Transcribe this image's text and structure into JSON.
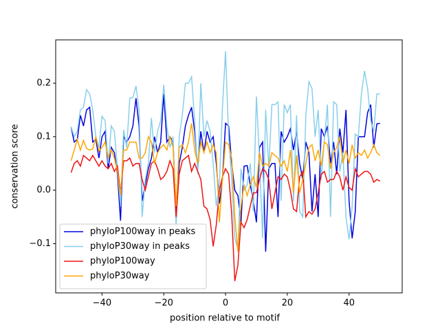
{
  "chart_data": {
    "type": "line",
    "xlabel": "position relative to motif",
    "ylabel": "conservation score",
    "x": [
      -50,
      -49,
      -48,
      -47,
      -46,
      -45,
      -44,
      -43,
      -42,
      -41,
      -40,
      -39,
      -38,
      -37,
      -36,
      -35,
      -34,
      -33,
      -32,
      -31,
      -30,
      -29,
      -28,
      -27,
      -26,
      -25,
      -24,
      -23,
      -22,
      -21,
      -20,
      -19,
      -18,
      -17,
      -16,
      -15,
      -14,
      -13,
      -12,
      -11,
      -10,
      -9,
      -8,
      -7,
      -6,
      -5,
      -4,
      -3,
      -2,
      -1,
      0,
      1,
      2,
      3,
      4,
      5,
      6,
      7,
      8,
      9,
      10,
      11,
      12,
      13,
      14,
      15,
      16,
      17,
      18,
      19,
      20,
      21,
      22,
      23,
      24,
      25,
      26,
      27,
      28,
      29,
      30,
      31,
      32,
      33,
      34,
      35,
      36,
      37,
      38,
      39,
      40,
      41,
      42,
      43,
      44,
      45,
      46,
      47,
      48,
      49,
      50
    ],
    "series": [
      {
        "name": "phyloP100way in peaks",
        "color": "#0000dd",
        "values": [
          0.118,
          0.09,
          0.095,
          0.14,
          0.12,
          0.15,
          0.155,
          0.09,
          0.095,
          0.06,
          0.1,
          0.11,
          0.04,
          0.08,
          0.07,
          0.03,
          -0.057,
          0.1,
          0.09,
          0.1,
          0.12,
          0.172,
          0.12,
          -0.02,
          0.01,
          0.04,
          0.06,
          0.1,
          0.07,
          0.09,
          0.18,
          0.09,
          0.1,
          0.09,
          -0.04,
          0.05,
          0.08,
          0.12,
          0.14,
          0.155,
          0.11,
          0.04,
          0.11,
          0.07,
          0.11,
          0.09,
          0.1,
          0.05,
          -0.025,
          0.02,
          0.125,
          0.12,
          0.05,
          0.0,
          -0.01,
          -0.06,
          0.045,
          0.046,
          0.01,
          -0.02,
          -0.06,
          0.08,
          0.09,
          -0.115,
          0.04,
          0.05,
          0.05,
          -0.05,
          0.11,
          0.09,
          0.1,
          0.115,
          0.075,
          0.11,
          0.05,
          0.02,
          0.09,
          0.07,
          -0.04,
          0.03,
          -0.05,
          0.115,
          0.1,
          0.12,
          0.05,
          0.09,
          0.03,
          0.115,
          0.07,
          0.15,
          -0.02,
          -0.09,
          -0.04,
          0.1,
          0.1,
          0.1,
          0.145,
          0.16,
          0.08,
          0.124,
          0.125
        ]
      },
      {
        "name": "phyloP30way in peaks",
        "color": "#87ceeb",
        "values": [
          0.118,
          0.1,
          0.11,
          0.15,
          0.155,
          0.188,
          0.18,
          0.15,
          0.1,
          0.08,
          0.138,
          0.13,
          0.05,
          0.12,
          0.11,
          0.04,
          -0.03,
          0.113,
          0.08,
          0.172,
          0.173,
          0.195,
          0.15,
          -0.05,
          0.02,
          0.05,
          0.135,
          0.07,
          0.11,
          0.13,
          0.197,
          0.12,
          0.08,
          0.1,
          -0.07,
          0.1,
          0.14,
          0.2,
          0.2,
          0.212,
          0.13,
          0.03,
          0.2,
          0.1,
          0.13,
          0.11,
          0.05,
          -0.03,
          0.01,
          0.155,
          0.26,
          0.1,
          0.02,
          -0.09,
          -0.11,
          0.04,
          0.0,
          0.01,
          0.05,
          -0.04,
          0.175,
          0.06,
          -0.09,
          0.15,
          0.04,
          0.16,
          0.16,
          0.165,
          -0.02,
          0.16,
          0.145,
          0.16,
          -0.02,
          0.14,
          -0.04,
          -0.05,
          0.14,
          0.203,
          0.19,
          0.1,
          0.15,
          0.02,
          0.095,
          0.16,
          -0.05,
          0.165,
          0.16,
          0.035,
          0.07,
          -0.05,
          -0.092,
          -0.03,
          0.105,
          0.1,
          0.18,
          0.223,
          0.19,
          0.13,
          0.11,
          0.18,
          0.18
        ]
      },
      {
        "name": "phyloP100way",
        "color": "#ee1111",
        "values": [
          0.033,
          0.05,
          0.055,
          0.045,
          0.065,
          0.06,
          0.055,
          0.065,
          0.055,
          0.045,
          0.055,
          0.045,
          0.04,
          0.05,
          0.035,
          0.045,
          -0.005,
          0.055,
          0.055,
          0.06,
          0.045,
          0.05,
          0.05,
          0.02,
          0.0,
          0.025,
          0.05,
          0.055,
          0.04,
          0.02,
          0.025,
          0.035,
          0.055,
          0.04,
          -0.05,
          0.03,
          0.055,
          0.06,
          0.065,
          0.035,
          0.05,
          0.035,
          0.02,
          -0.03,
          -0.035,
          -0.055,
          -0.105,
          -0.065,
          0.0,
          0.025,
          0.04,
          0.03,
          -0.045,
          -0.17,
          -0.14,
          -0.06,
          -0.07,
          -0.055,
          -0.03,
          -0.005,
          -0.005,
          0.02,
          0.04,
          0.035,
          0.02,
          -0.035,
          -0.005,
          0.025,
          0.02,
          0.03,
          0.025,
          0.0,
          -0.035,
          -0.04,
          0.025,
          0.035,
          -0.05,
          -0.04,
          -0.045,
          -0.035,
          -0.005,
          0.03,
          0.035,
          0.015,
          0.02,
          0.02,
          0.035,
          0.025,
          0.0,
          0.025,
          0.005,
          0.0,
          0.04,
          0.025,
          0.03,
          0.035,
          0.035,
          0.03,
          0.015,
          0.02,
          0.017
        ]
      },
      {
        "name": "phyloP30way",
        "color": "#ffa500",
        "values": [
          0.055,
          0.075,
          0.095,
          0.075,
          0.093,
          0.078,
          0.075,
          0.077,
          0.1,
          0.073,
          0.08,
          0.09,
          0.06,
          0.076,
          0.06,
          0.035,
          -0.01,
          0.075,
          0.075,
          0.09,
          0.09,
          0.09,
          0.06,
          0.06,
          0.07,
          0.1,
          0.09,
          0.05,
          0.07,
          0.08,
          0.085,
          0.075,
          0.1,
          0.08,
          -0.03,
          0.08,
          0.085,
          0.07,
          0.09,
          0.125,
          0.075,
          0.05,
          0.09,
          0.07,
          0.09,
          0.07,
          0.085,
          0.07,
          -0.06,
          0.02,
          0.09,
          0.085,
          0.06,
          -0.05,
          -0.115,
          -0.03,
          0.01,
          -0.01,
          0.01,
          0.025,
          0.005,
          0.07,
          0.045,
          0.05,
          0.045,
          0.07,
          0.065,
          0.06,
          0.045,
          0.055,
          0.035,
          0.075,
          -0.005,
          0.065,
          -0.005,
          0.02,
          0.05,
          0.08,
          0.085,
          0.055,
          0.075,
          0.045,
          0.09,
          0.085,
          0.04,
          0.07,
          0.08,
          0.1,
          0.05,
          0.075,
          0.05,
          0.085,
          0.06,
          0.07,
          0.065,
          0.075,
          0.06,
          0.07,
          0.085,
          0.07,
          0.065
        ]
      }
    ],
    "xlim": [
      -55,
      57.2
    ],
    "ylim": [
      -0.192,
      0.281
    ],
    "xticks": [
      {
        "value": -40,
        "label": "−40"
      },
      {
        "value": -20,
        "label": "−20"
      },
      {
        "value": 0,
        "label": "0"
      },
      20,
      40
    ],
    "yticks": [
      {
        "value": -0.1,
        "label": "−0.1"
      },
      {
        "value": 0,
        "label": "0.0"
      },
      0.1,
      0.2
    ],
    "legend": "lower left"
  }
}
